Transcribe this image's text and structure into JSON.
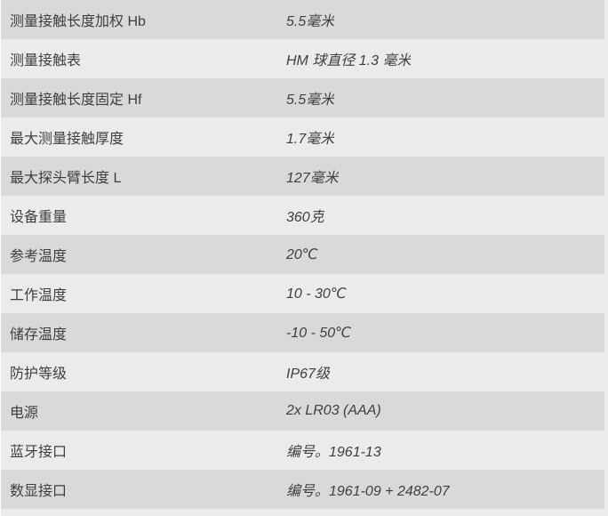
{
  "colors": {
    "row_odd": "#d8d9da",
    "row_even": "#eaebed",
    "text": "#3f3f3f",
    "left_edge": "#fdfdfd"
  },
  "spec_table": {
    "rows": [
      {
        "label": "测量接触长度加权 Hb",
        "value": "5.5毫米"
      },
      {
        "label": "测量接触表",
        "value": "HM 球直径 1.3 毫米"
      },
      {
        "label": "测量接触长度固定 Hf",
        "value": "5.5毫米"
      },
      {
        "label": "最大测量接触厚度",
        "value": "1.7毫米"
      },
      {
        "label": "最大探头臂长度 L",
        "value": "127毫米"
      },
      {
        "label": "设备重量",
        "value": "360克"
      },
      {
        "label": "参考温度",
        "value": "20℃"
      },
      {
        "label": "工作温度",
        "value": "10 - 30℃"
      },
      {
        "label": "储存温度",
        "value": "-10 - 50℃"
      },
      {
        "label": "防护等级",
        "value": "IP67级"
      },
      {
        "label": "电源",
        "value": "2x LR03 (AAA)"
      },
      {
        "label": "蓝牙接口",
        "value": "编号。1961-13"
      },
      {
        "label": "数显接口",
        "value": "编号。1961-09 + 2482-07"
      }
    ]
  }
}
